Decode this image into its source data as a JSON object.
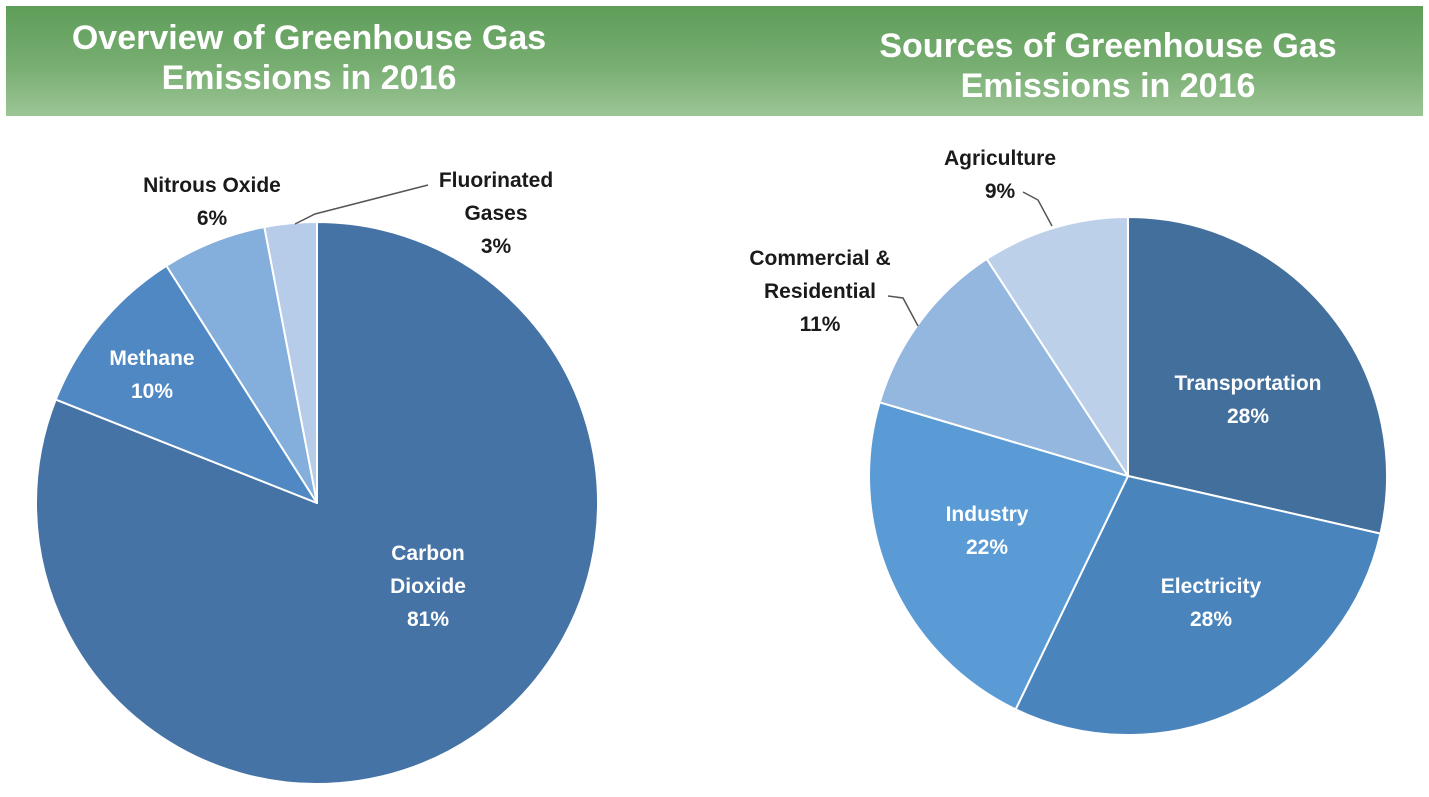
{
  "left_header": {
    "line1": "Overview of Greenhouse Gas",
    "line2": "Emissions in 2016"
  },
  "right_header": {
    "line1": "Sources of Greenhouse Gas",
    "line2": "Emissions in 2016"
  },
  "colors": {
    "banner": "#6aa664",
    "carbon_dioxide": "#4573a5",
    "methane": "#4f88c3",
    "nitrous_oxide": "#84aedc",
    "fluorinated_gases": "#b7cce9",
    "transportation": "#426f9c",
    "electricity": "#4a84bd",
    "industry": "#5a9bd6",
    "commercial_residential": "#94b7df",
    "agriculture": "#bcd0ea"
  },
  "chart_data": [
    {
      "type": "pie",
      "title": "Overview of Greenhouse Gas Emissions in 2016",
      "start": "top, clockwise",
      "slices": [
        {
          "key": "co2",
          "label_lines": [
            "Carbon",
            "Dioxide",
            "81%"
          ],
          "value": 81,
          "color": "#4573a5",
          "label_side": "inside"
        },
        {
          "key": "ch4",
          "label_lines": [
            "Methane",
            "10%"
          ],
          "value": 10,
          "color": "#4f88c3",
          "label_side": "inside"
        },
        {
          "key": "n2o",
          "label_lines": [
            "Nitrous Oxide",
            "6%"
          ],
          "value": 6,
          "color": "#84aedc",
          "label_side": "outside"
        },
        {
          "key": "fgas",
          "label_lines": [
            "Fluorinated",
            "Gases",
            "3%"
          ],
          "value": 3,
          "color": "#b7cce9",
          "label_side": "outside-leader"
        }
      ]
    },
    {
      "type": "pie",
      "title": "Sources of Greenhouse Gas Emissions in 2016",
      "start": "top, clockwise",
      "slices": [
        {
          "key": "transport",
          "label_lines": [
            "Transportation",
            "28%"
          ],
          "value": 28,
          "color": "#426f9c",
          "label_side": "inside"
        },
        {
          "key": "electricity",
          "label_lines": [
            "Electricity",
            "28%"
          ],
          "value": 28,
          "color": "#4a84bd",
          "label_side": "inside"
        },
        {
          "key": "industry",
          "label_lines": [
            "Industry",
            "22%"
          ],
          "value": 22,
          "color": "#5a9bd6",
          "label_side": "inside"
        },
        {
          "key": "commres",
          "label_lines": [
            "Commercial &",
            "Residential",
            "11%"
          ],
          "value": 11,
          "color": "#94b7df",
          "label_side": "outside-leader"
        },
        {
          "key": "agri",
          "label_lines": [
            "Agriculture",
            "9%"
          ],
          "value": 9,
          "color": "#bcd0ea",
          "label_side": "outside-leader"
        }
      ]
    }
  ]
}
